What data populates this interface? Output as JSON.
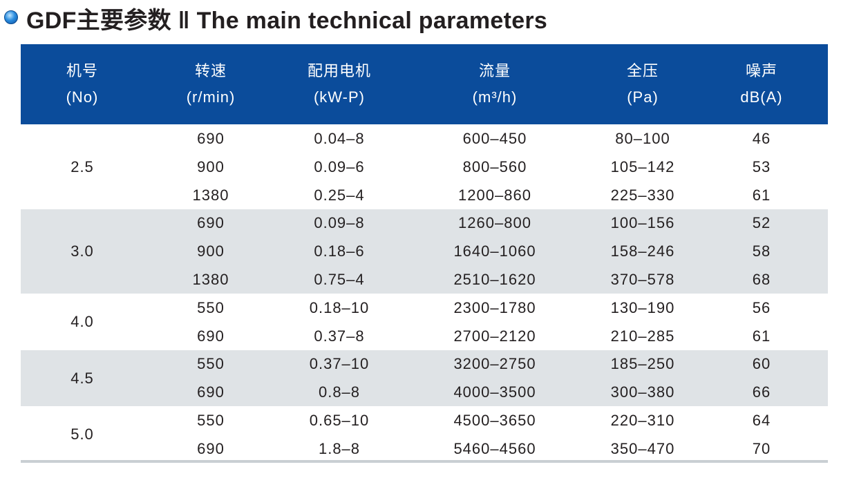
{
  "header": {
    "title": "GDF主要参数 ‖ The main technical parameters"
  },
  "table": {
    "columns": [
      {
        "name": "机号",
        "unit": "(No)"
      },
      {
        "name": "转速",
        "unit": "(r/min)"
      },
      {
        "name": "配用电机",
        "unit": "(kW-P)"
      },
      {
        "name": "流量",
        "unit": "(m³/h)"
      },
      {
        "name": "全压",
        "unit": "(Pa)"
      },
      {
        "name": "噪声",
        "unit": "dB(A)"
      }
    ],
    "groups": [
      {
        "no": "2.5",
        "rows": [
          [
            "690",
            "0.04–8",
            "600–450",
            "80–100",
            "46"
          ],
          [
            "900",
            "0.09–6",
            "800–560",
            "105–142",
            "53"
          ],
          [
            "1380",
            "0.25–4",
            "1200–860",
            "225–330",
            "61"
          ]
        ]
      },
      {
        "no": "3.0",
        "rows": [
          [
            "690",
            "0.09–8",
            "1260–800",
            "100–156",
            "52"
          ],
          [
            "900",
            "0.18–6",
            "1640–1060",
            "158–246",
            "58"
          ],
          [
            "1380",
            "0.75–4",
            "2510–1620",
            "370–578",
            "68"
          ]
        ]
      },
      {
        "no": "4.0",
        "rows": [
          [
            "550",
            "0.18–10",
            "2300–1780",
            "130–190",
            "56"
          ],
          [
            "690",
            "0.37–8",
            "2700–2120",
            "210–285",
            "61"
          ]
        ]
      },
      {
        "no": "4.5",
        "rows": [
          [
            "550",
            "0.37–10",
            "3200–2750",
            "185–250",
            "60"
          ],
          [
            "690",
            "0.8–8",
            "4000–3500",
            "300–380",
            "66"
          ]
        ]
      },
      {
        "no": "5.0",
        "rows": [
          [
            "550",
            "0.65–10",
            "4500–3650",
            "220–310",
            "64"
          ],
          [
            "690",
            "1.8–8",
            "5460–4560",
            "350–470",
            "70"
          ]
        ]
      }
    ]
  }
}
